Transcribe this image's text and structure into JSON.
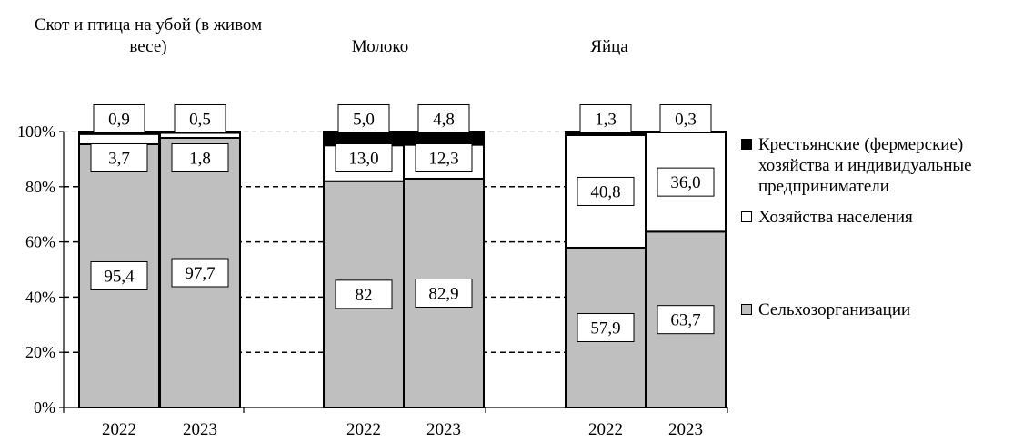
{
  "colors": {
    "agro": "#bfbfbf",
    "households": "#ffffff",
    "farmers": "#000000",
    "axis": "#000000",
    "grid": "#000000",
    "grid_top": "#c8c8c8"
  },
  "legend": [
    {
      "key": "farmers",
      "label": "Крестьянские (фермерские) хозяйства и индивидуальные предприниматели"
    },
    {
      "key": "households",
      "label": "Хозяйства населения"
    },
    {
      "key": "agro",
      "label": "Сельхозорганизации"
    }
  ],
  "chart_data": {
    "type": "bar",
    "stacked": true,
    "groups": [
      {
        "title": "Скот и птица на убой (в живом весе)",
        "categories": [
          "2022",
          "2023"
        ]
      },
      {
        "title": "Молоко",
        "categories": [
          "2022",
          "2023"
        ]
      },
      {
        "title": "Яйца",
        "categories": [
          "2022",
          "2023"
        ]
      }
    ],
    "categories": [
      "2022",
      "2023",
      "2022",
      "2023",
      "2022",
      "2023"
    ],
    "series": [
      {
        "name": "Сельхозорганизации",
        "key": "agro",
        "values": [
          95.4,
          97.7,
          82,
          82.9,
          57.9,
          63.7
        ],
        "labels": [
          "95,4",
          "97,7",
          "82",
          "82,9",
          "57,9",
          "63,7"
        ]
      },
      {
        "name": "Хозяйства населения",
        "key": "households",
        "values": [
          3.7,
          1.8,
          13.0,
          12.3,
          40.8,
          36.0
        ],
        "labels": [
          "3,7",
          "1,8",
          "13,0",
          "12,3",
          "40,8",
          "36,0"
        ]
      },
      {
        "name": "Крестьянские (фермерские) хозяйства и индивидуальные предприниматели",
        "key": "farmers",
        "values": [
          0.9,
          0.5,
          5.0,
          4.8,
          1.3,
          0.3
        ],
        "labels": [
          "0,9",
          "0,5",
          "5,0",
          "4,8",
          "1,3",
          "0,3"
        ]
      }
    ],
    "ylim": [
      0,
      100
    ],
    "yticks": [
      "0%",
      "20%",
      "40%",
      "60%",
      "80%",
      "100%"
    ],
    "grid": "dashed",
    "legend_position": "right"
  }
}
